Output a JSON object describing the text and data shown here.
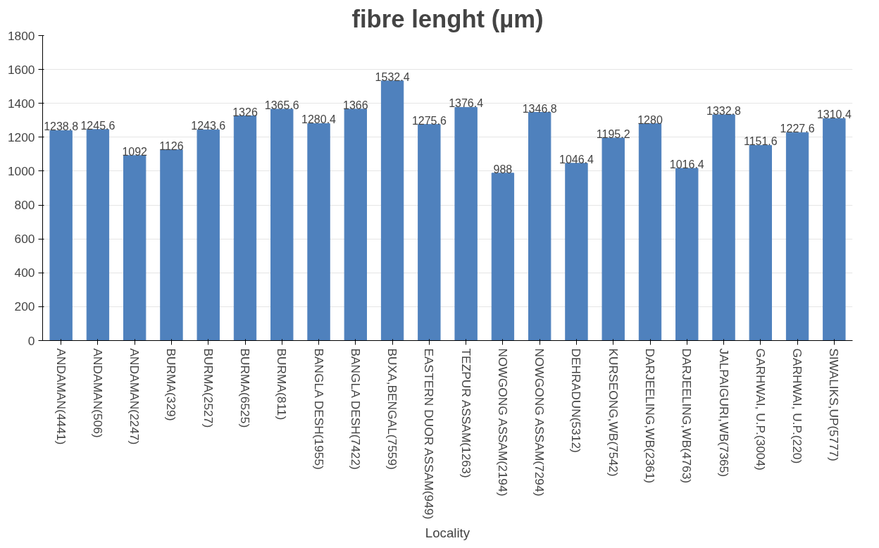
{
  "chart_data": {
    "type": "bar",
    "title": "fibre lenght (µm)",
    "xlabel": "Locality",
    "categories": [
      "ANDAMAN(4441)",
      "ANDAMAN(506)",
      "ANDAMAN(2247)",
      "BURMA(329)",
      "BURMA(2527)",
      "BURMA(6525)",
      "BURMA(811)",
      "BANGLA DESH(1955)",
      "BANGLA DESH(7422)",
      "BUXA,BENGAL(7559)",
      "EASTERN DUOR ASSAM(949)",
      "TEZPUR ASSAM(1263)",
      "NOWGONG ASSAM(2194)",
      "NOWGONG ASSAM(7294)",
      "DEHRADUN(5312)",
      "KURSEONG,WB(7542)",
      "DARJEELING,WB(2361)",
      "DARJEELING,WB(4763)",
      "JALPAIGURI,WB(7365)",
      "GARHWAI, U.P.(3004)",
      "GARHWAI, U.P.(220)",
      "SIWALIKS,UP(5777)"
    ],
    "values": [
      1238.8,
      1245.6,
      1092,
      1126,
      1243.6,
      1326,
      1365.6,
      1280.4,
      1366,
      1532.4,
      1275.6,
      1376.4,
      988,
      1346.8,
      1046.4,
      1195.2,
      1280,
      1016.4,
      1332.8,
      1151.6,
      1227.6,
      1310.4
    ],
    "color": "#4f81bd",
    "data_labels": true,
    "ylim": [
      0,
      1800
    ],
    "yticks": [
      0,
      200,
      400,
      600,
      800,
      1000,
      1200,
      1400,
      1600,
      1800
    ],
    "grid": "y"
  }
}
